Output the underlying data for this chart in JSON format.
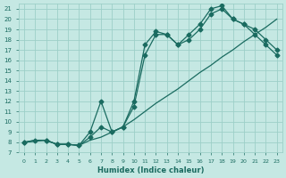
{
  "xlabel": "Humidex (Indice chaleur)",
  "bg_color": "#c5e8e3",
  "grid_color": "#9dcfc8",
  "line_color": "#1a6b60",
  "markersize": 2.5,
  "linewidth": 0.9,
  "xlim": [
    -0.5,
    23.5
  ],
  "ylim": [
    7,
    21.5
  ],
  "xticks": [
    0,
    1,
    2,
    3,
    4,
    5,
    6,
    7,
    8,
    9,
    10,
    11,
    12,
    13,
    14,
    15,
    16,
    17,
    18,
    19,
    20,
    21,
    22,
    23
  ],
  "yticks": [
    7,
    8,
    9,
    10,
    11,
    12,
    13,
    14,
    15,
    16,
    17,
    18,
    19,
    20,
    21
  ],
  "line1_x": [
    0,
    1,
    2,
    3,
    4,
    5,
    6,
    7,
    8,
    9,
    10,
    11,
    12,
    13,
    14,
    15,
    16,
    17,
    18,
    19,
    20,
    21,
    22,
    23
  ],
  "line1_y": [
    8,
    8.2,
    8.2,
    7.8,
    7.8,
    7.7,
    8.2,
    8.5,
    9.0,
    9.5,
    10.2,
    11.0,
    11.8,
    12.5,
    13.2,
    14.0,
    14.8,
    15.5,
    16.3,
    17.0,
    17.8,
    18.5,
    19.2,
    20.0
  ],
  "line2_x": [
    0,
    1,
    2,
    3,
    4,
    5,
    6,
    7,
    8,
    9,
    10,
    11,
    12,
    13,
    14,
    15,
    16,
    17,
    18,
    19,
    20,
    21,
    22,
    23
  ],
  "line2_y": [
    8,
    8.2,
    8.2,
    7.8,
    7.8,
    7.7,
    8.5,
    9.5,
    9.0,
    9.5,
    11.5,
    16.5,
    18.5,
    18.5,
    17.5,
    18.0,
    19.0,
    20.5,
    21.0,
    20.0,
    19.5,
    19.0,
    18.0,
    17.0
  ],
  "line3_x": [
    0,
    2,
    3,
    4,
    5,
    6,
    7,
    8,
    9,
    10,
    11,
    12,
    13,
    14,
    15,
    16,
    17,
    18,
    19,
    20,
    21,
    22,
    23
  ],
  "line3_y": [
    8,
    8.2,
    7.8,
    7.8,
    7.7,
    9.0,
    12.0,
    9.0,
    9.5,
    12.0,
    17.5,
    18.8,
    18.5,
    17.5,
    18.5,
    19.5,
    21.0,
    21.3,
    20.0,
    19.5,
    18.5,
    17.5,
    16.5
  ]
}
